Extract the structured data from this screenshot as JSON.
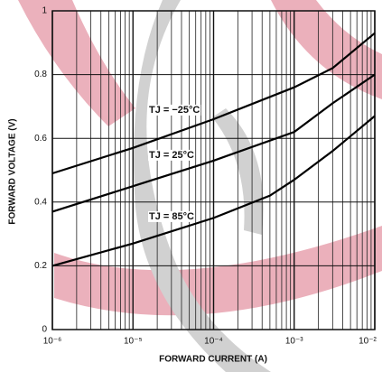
{
  "chart_data": {
    "type": "line",
    "xlabel": "FORWARD CURRENT (A)",
    "ylabel": "FORWARD VOLTAGE (V)",
    "xlog": true,
    "grid": true,
    "minor_grid": true,
    "xlim": [
      1e-06,
      0.01
    ],
    "xticks": [
      {
        "value": 1e-06,
        "label": "10⁻⁶"
      },
      {
        "value": 1e-05,
        "label": "10⁻⁵"
      },
      {
        "value": 0.0001,
        "label": "10⁻⁴"
      },
      {
        "value": 0.001,
        "label": "10⁻³"
      },
      {
        "value": 0.01,
        "label": "10⁻²"
      }
    ],
    "ylim": [
      0,
      1
    ],
    "yticks": [
      0,
      0.2,
      0.4,
      0.6,
      0.8,
      1
    ],
    "series": [
      {
        "name": "TJ = −25°C",
        "color": "#000000",
        "x": [
          1e-06,
          1e-05,
          0.0001,
          0.001,
          0.003,
          0.01
        ],
        "values": [
          0.49,
          0.57,
          0.66,
          0.76,
          0.82,
          0.93
        ]
      },
      {
        "name": "TJ = 25°C",
        "color": "#000000",
        "x": [
          1e-06,
          1e-05,
          0.0001,
          0.001,
          0.003,
          0.01
        ],
        "values": [
          0.37,
          0.45,
          0.53,
          0.62,
          0.71,
          0.8
        ]
      },
      {
        "name": "TJ = 85°C",
        "color": "#000000",
        "x": [
          1e-06,
          1e-05,
          0.0001,
          0.0005,
          0.001,
          0.003,
          0.01
        ],
        "values": [
          0.2,
          0.27,
          0.35,
          0.42,
          0.47,
          0.56,
          0.67
        ]
      }
    ]
  }
}
